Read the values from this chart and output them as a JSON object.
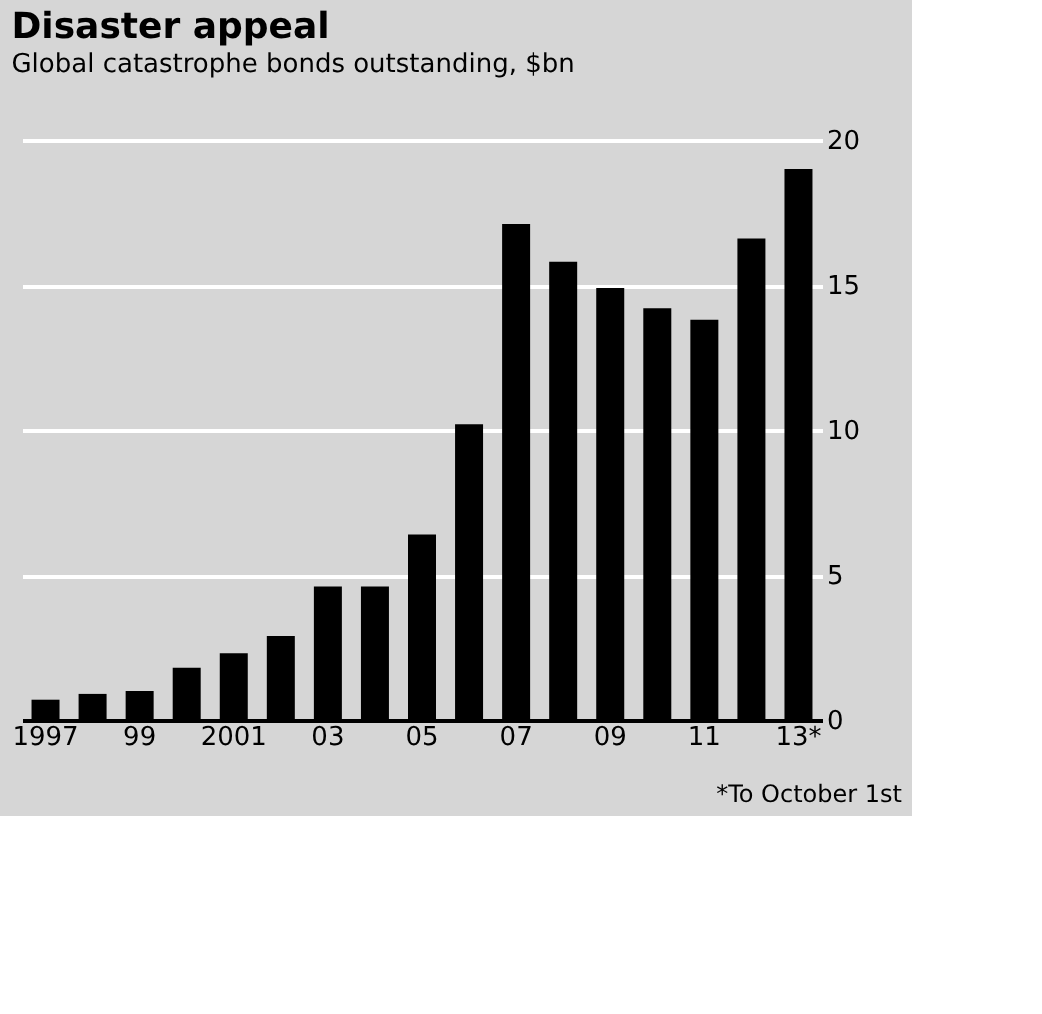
{
  "chart_data": {
    "type": "bar",
    "title": "Disaster appeal",
    "subtitle": "Global catastrophe bonds outstanding, $bn",
    "categories": [
      "1997",
      null,
      "99",
      null,
      "2001",
      null,
      "03",
      null,
      "05",
      null,
      "07",
      null,
      "09",
      null,
      "11",
      null,
      "13*"
    ],
    "values": [
      0.7,
      0.9,
      1.0,
      1.8,
      2.3,
      2.9,
      4.6,
      4.6,
      6.4,
      10.2,
      17.1,
      15.8,
      14.9,
      14.2,
      13.8,
      16.6,
      19.0
    ],
    "color": "#000000",
    "ylim": [
      0,
      20
    ],
    "yticks": [
      0,
      5,
      10,
      15,
      20
    ],
    "grid": "y",
    "annotations": [
      "*To October 1st"
    ]
  }
}
